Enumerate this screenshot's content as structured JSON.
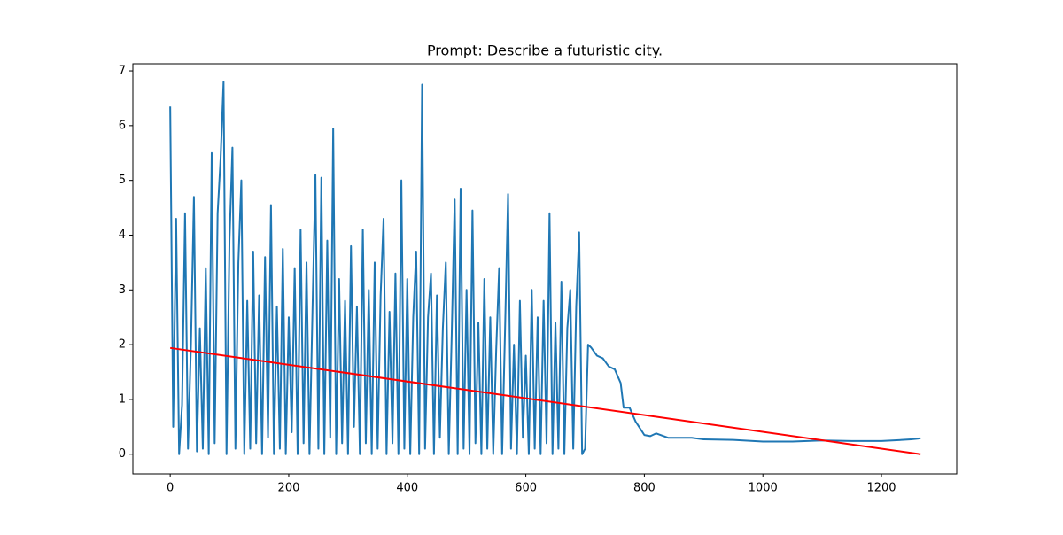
{
  "chart_data": {
    "type": "line",
    "title": "Prompt: Describe a futuristic city.",
    "xlim": [
      -63,
      1327
    ],
    "ylim": [
      -0.36,
      7.13
    ],
    "xticks": [
      0,
      200,
      400,
      600,
      800,
      1000,
      1200
    ],
    "yticks": [
      0,
      1,
      2,
      3,
      4,
      5,
      6,
      7
    ],
    "grid": false,
    "series": [
      {
        "color": "#1f77b4",
        "x": [
          0,
          5,
          10,
          15,
          20,
          25,
          30,
          35,
          40,
          45,
          50,
          55,
          60,
          65,
          70,
          75,
          80,
          85,
          90,
          95,
          100,
          105,
          110,
          115,
          120,
          125,
          130,
          135,
          140,
          145,
          150,
          155,
          160,
          165,
          170,
          175,
          180,
          185,
          190,
          195,
          200,
          205,
          210,
          215,
          220,
          225,
          230,
          235,
          240,
          245,
          250,
          255,
          260,
          265,
          270,
          275,
          280,
          285,
          290,
          295,
          300,
          305,
          310,
          315,
          320,
          325,
          330,
          335,
          340,
          345,
          350,
          355,
          360,
          365,
          370,
          375,
          380,
          385,
          390,
          395,
          400,
          405,
          410,
          415,
          420,
          425,
          430,
          435,
          440,
          445,
          450,
          455,
          460,
          465,
          470,
          475,
          480,
          485,
          490,
          495,
          500,
          505,
          510,
          515,
          520,
          525,
          530,
          535,
          540,
          545,
          550,
          555,
          560,
          565,
          570,
          575,
          580,
          585,
          590,
          595,
          600,
          605,
          610,
          615,
          620,
          625,
          630,
          635,
          640,
          645,
          650,
          655,
          660,
          665,
          670,
          675,
          680,
          685,
          690,
          695,
          700,
          705,
          710,
          720,
          730,
          740,
          750,
          760,
          765,
          775,
          785,
          800,
          810,
          820,
          840,
          860,
          880,
          900,
          950,
          1000,
          1050,
          1100,
          1150,
          1200,
          1250,
          1266
        ],
        "values": [
          6.35,
          0.5,
          4.3,
          0.0,
          0.9,
          4.4,
          0.1,
          2.0,
          4.7,
          0.05,
          2.3,
          0.1,
          3.4,
          0.0,
          5.5,
          0.2,
          4.4,
          5.4,
          6.8,
          0.0,
          3.9,
          5.6,
          0.1,
          3.5,
          5.0,
          0.0,
          2.8,
          0.1,
          3.7,
          0.2,
          2.9,
          0.0,
          3.6,
          0.3,
          4.55,
          0.0,
          2.7,
          0.1,
          3.75,
          0.0,
          2.5,
          0.4,
          3.4,
          0.0,
          4.1,
          0.2,
          3.5,
          0.0,
          2.6,
          5.1,
          0.1,
          5.05,
          0.0,
          3.9,
          0.3,
          5.95,
          0.0,
          3.2,
          0.2,
          2.8,
          0.0,
          3.8,
          0.5,
          2.7,
          0.0,
          4.1,
          0.2,
          3.0,
          0.0,
          3.5,
          0.1,
          2.9,
          4.3,
          0.0,
          2.6,
          0.2,
          3.3,
          0.0,
          5.0,
          0.1,
          3.2,
          0.0,
          2.5,
          3.7,
          0.0,
          6.75,
          0.1,
          2.5,
          3.3,
          0.0,
          2.9,
          0.3,
          2.3,
          3.5,
          0.0,
          2.2,
          4.65,
          0.0,
          4.85,
          0.1,
          3.0,
          0.0,
          4.45,
          0.2,
          2.4,
          0.0,
          3.2,
          0.1,
          2.5,
          0.0,
          1.9,
          3.4,
          0.0,
          2.3,
          4.75,
          0.1,
          2.0,
          0.0,
          2.8,
          0.3,
          1.8,
          0.0,
          3.0,
          0.1,
          2.5,
          0.0,
          2.8,
          0.2,
          4.4,
          0.0,
          2.4,
          0.1,
          3.15,
          0.0,
          2.3,
          3.0,
          0.1,
          2.7,
          4.05,
          0.0,
          0.1,
          2.0,
          1.95,
          1.8,
          1.75,
          1.6,
          1.55,
          1.3,
          0.85,
          0.85,
          0.6,
          0.35,
          0.33,
          0.38,
          0.3,
          0.3,
          0.3,
          0.27,
          0.26,
          0.23,
          0.23,
          0.25,
          0.24,
          0.24,
          0.27,
          0.29
        ]
      },
      {
        "color": "#ff0000",
        "x": [
          0,
          1266
        ],
        "values": [
          1.94,
          0
        ]
      }
    ]
  }
}
